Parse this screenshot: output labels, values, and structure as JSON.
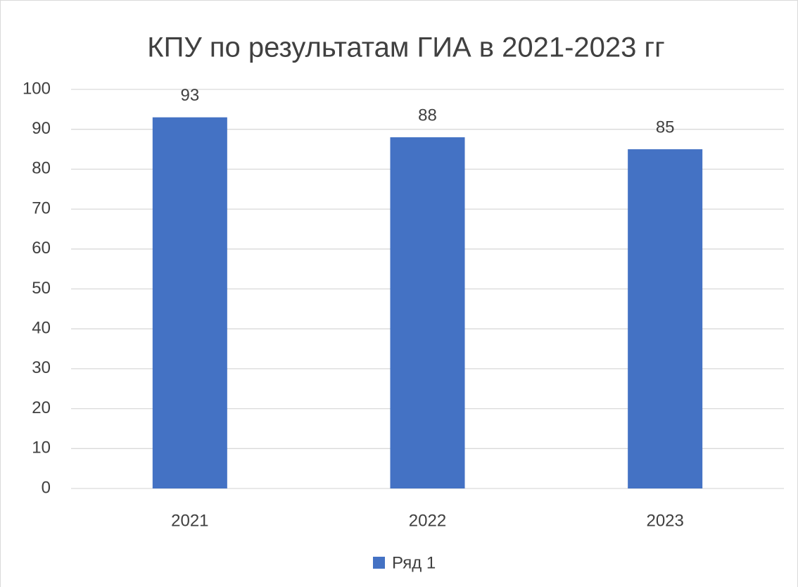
{
  "chart_data": {
    "type": "bar",
    "title": "КПУ по результатам ГИА в 2021-2023 гг",
    "categories": [
      "2021",
      "2022",
      "2023"
    ],
    "series": [
      {
        "name": "Ряд 1",
        "color": "#4472c4",
        "values": [
          93,
          88,
          85
        ]
      }
    ],
    "ylim": [
      0,
      100
    ],
    "yticks": [
      0,
      10,
      20,
      30,
      40,
      50,
      60,
      70,
      80,
      90,
      100
    ],
    "grid": true,
    "legend": "bottom",
    "data_labels": true
  }
}
